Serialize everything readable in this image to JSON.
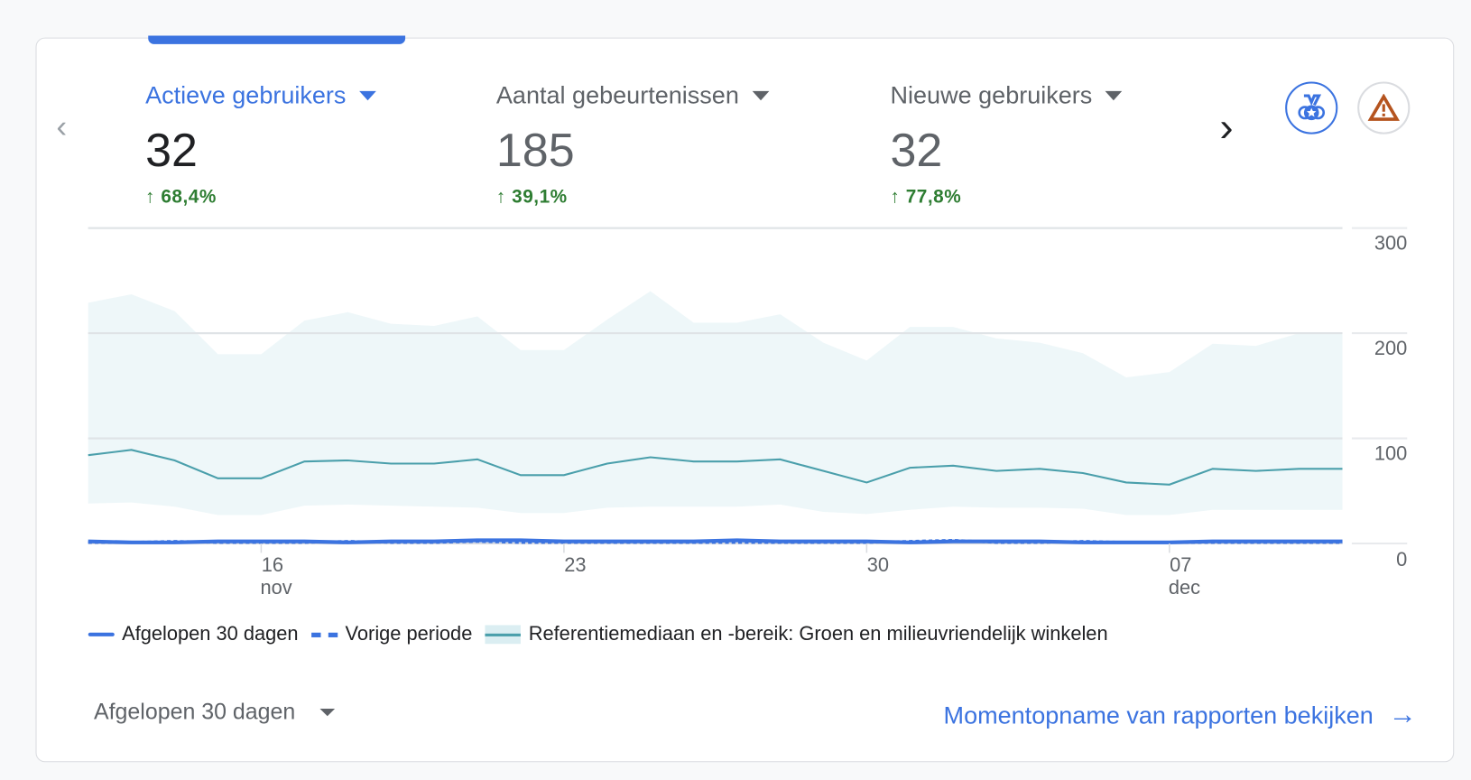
{
  "metrics": [
    {
      "label": "Actieve gebruikers",
      "value": "32",
      "change": "68,4%",
      "active": true
    },
    {
      "label": "Aantal gebeurtenissen",
      "value": "185",
      "change": "39,1%"
    },
    {
      "label": "Nieuwe gebruikers",
      "value": "32",
      "change": "77,8%"
    }
  ],
  "icons": {
    "prev": "chevron-left-icon",
    "next": "chevron-right-icon",
    "badge": "medal-icon",
    "warning": "warning-triangle-icon"
  },
  "colors": {
    "accent": "#3b73e0",
    "positive": "#2e7d32",
    "benchmark_line": "#4a9fab",
    "benchmark_band": "#eef7f9",
    "warning": "#b5541f"
  },
  "chart_data": {
    "type": "line",
    "x": [
      "2023-11-12",
      "2023-11-13",
      "2023-11-14",
      "2023-11-15",
      "2023-11-16",
      "2023-11-17",
      "2023-11-18",
      "2023-11-19",
      "2023-11-20",
      "2023-11-21",
      "2023-11-22",
      "2023-11-23",
      "2023-11-24",
      "2023-11-25",
      "2023-11-26",
      "2023-11-27",
      "2023-11-28",
      "2023-11-29",
      "2023-11-30",
      "2023-12-01",
      "2023-12-02",
      "2023-12-03",
      "2023-12-04",
      "2023-12-05",
      "2023-12-06",
      "2023-12-07",
      "2023-12-08",
      "2023-12-09",
      "2023-12-10",
      "2023-12-11"
    ],
    "x_ticks": [
      {
        "index": 4,
        "label": "16",
        "sub": "nov"
      },
      {
        "index": 11,
        "label": "23"
      },
      {
        "index": 18,
        "label": "30"
      },
      {
        "index": 25,
        "label": "07",
        "sub": "dec"
      }
    ],
    "y_ticks": [
      "0",
      "100",
      "200",
      "300"
    ],
    "ylim": [
      0,
      300
    ],
    "grid": true,
    "y_axis_side": "right",
    "series": [
      {
        "name": "Afgelopen 30 dagen",
        "style": "solid",
        "values": [
          2,
          1,
          1,
          2,
          2,
          2,
          1,
          2,
          2,
          3,
          3,
          2,
          2,
          2,
          2,
          3,
          2,
          2,
          2,
          1,
          2,
          2,
          2,
          1,
          1,
          1,
          2,
          2,
          2,
          2
        ]
      },
      {
        "name": "Vorige periode",
        "style": "dashed",
        "values": [
          1,
          1,
          2,
          1,
          1,
          1,
          2,
          1,
          1,
          2,
          1,
          1,
          1,
          1,
          1,
          1,
          1,
          1,
          1,
          2,
          3,
          1,
          1,
          2,
          1,
          1,
          1,
          1,
          1,
          1
        ]
      },
      {
        "name": "Referentiemediaan en -bereik: Groen en milieuvriendelijk winkelen",
        "style": "band",
        "median": [
          84,
          89,
          79,
          62,
          62,
          78,
          79,
          76,
          76,
          80,
          65,
          65,
          76,
          82,
          78,
          78,
          80,
          69,
          58,
          72,
          74,
          69,
          71,
          67,
          58,
          56,
          71,
          69,
          71,
          71
        ],
        "upper": [
          229,
          237,
          221,
          180,
          180,
          212,
          220,
          209,
          207,
          216,
          184,
          184,
          213,
          240,
          210,
          210,
          218,
          191,
          174,
          206,
          206,
          195,
          191,
          181,
          158,
          163,
          190,
          188,
          200,
          200
        ],
        "lower": [
          38,
          39,
          35,
          27,
          27,
          36,
          37,
          36,
          35,
          34,
          29,
          29,
          34,
          35,
          35,
          35,
          37,
          30,
          28,
          32,
          35,
          34,
          34,
          33,
          27,
          27,
          32,
          32,
          32,
          32
        ]
      }
    ],
    "legend": "bottom-left"
  },
  "footer": {
    "date_range": "Afgelopen 30 dagen",
    "link": "Momentopname van rapporten bekijken"
  }
}
